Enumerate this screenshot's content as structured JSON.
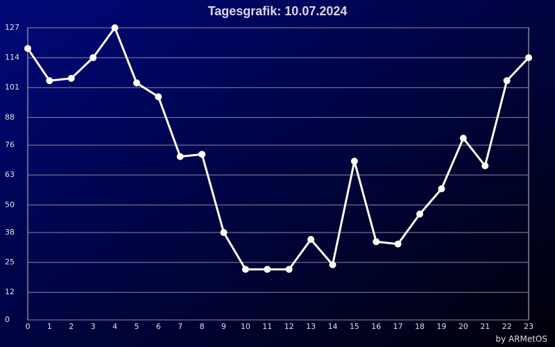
{
  "chart_data": {
    "type": "line",
    "title": "Tagesgrafik: 10.07.2024",
    "footer": "by ARMetOS",
    "x": [
      0,
      1,
      2,
      3,
      4,
      5,
      6,
      7,
      8,
      9,
      10,
      11,
      12,
      13,
      14,
      15,
      16,
      17,
      18,
      19,
      20,
      21,
      22,
      23
    ],
    "xlim": [
      0,
      23
    ],
    "xticks": [
      0,
      1,
      2,
      3,
      4,
      5,
      6,
      7,
      8,
      9,
      10,
      11,
      12,
      13,
      14,
      15,
      16,
      17,
      18,
      19,
      20,
      21,
      22,
      23
    ],
    "series": [
      {
        "color": "#fffff0",
        "values": [
          118,
          104,
          105,
          114,
          127,
          103,
          97,
          71,
          72,
          38,
          22,
          22,
          22,
          35,
          24,
          69,
          34,
          33,
          46,
          57,
          79,
          67,
          104,
          114
        ]
      }
    ],
    "ylim": [
      0,
      127
    ],
    "yticks": [
      0,
      12,
      25,
      38,
      50,
      63,
      76,
      88,
      101,
      114,
      127
    ],
    "grid": true
  }
}
